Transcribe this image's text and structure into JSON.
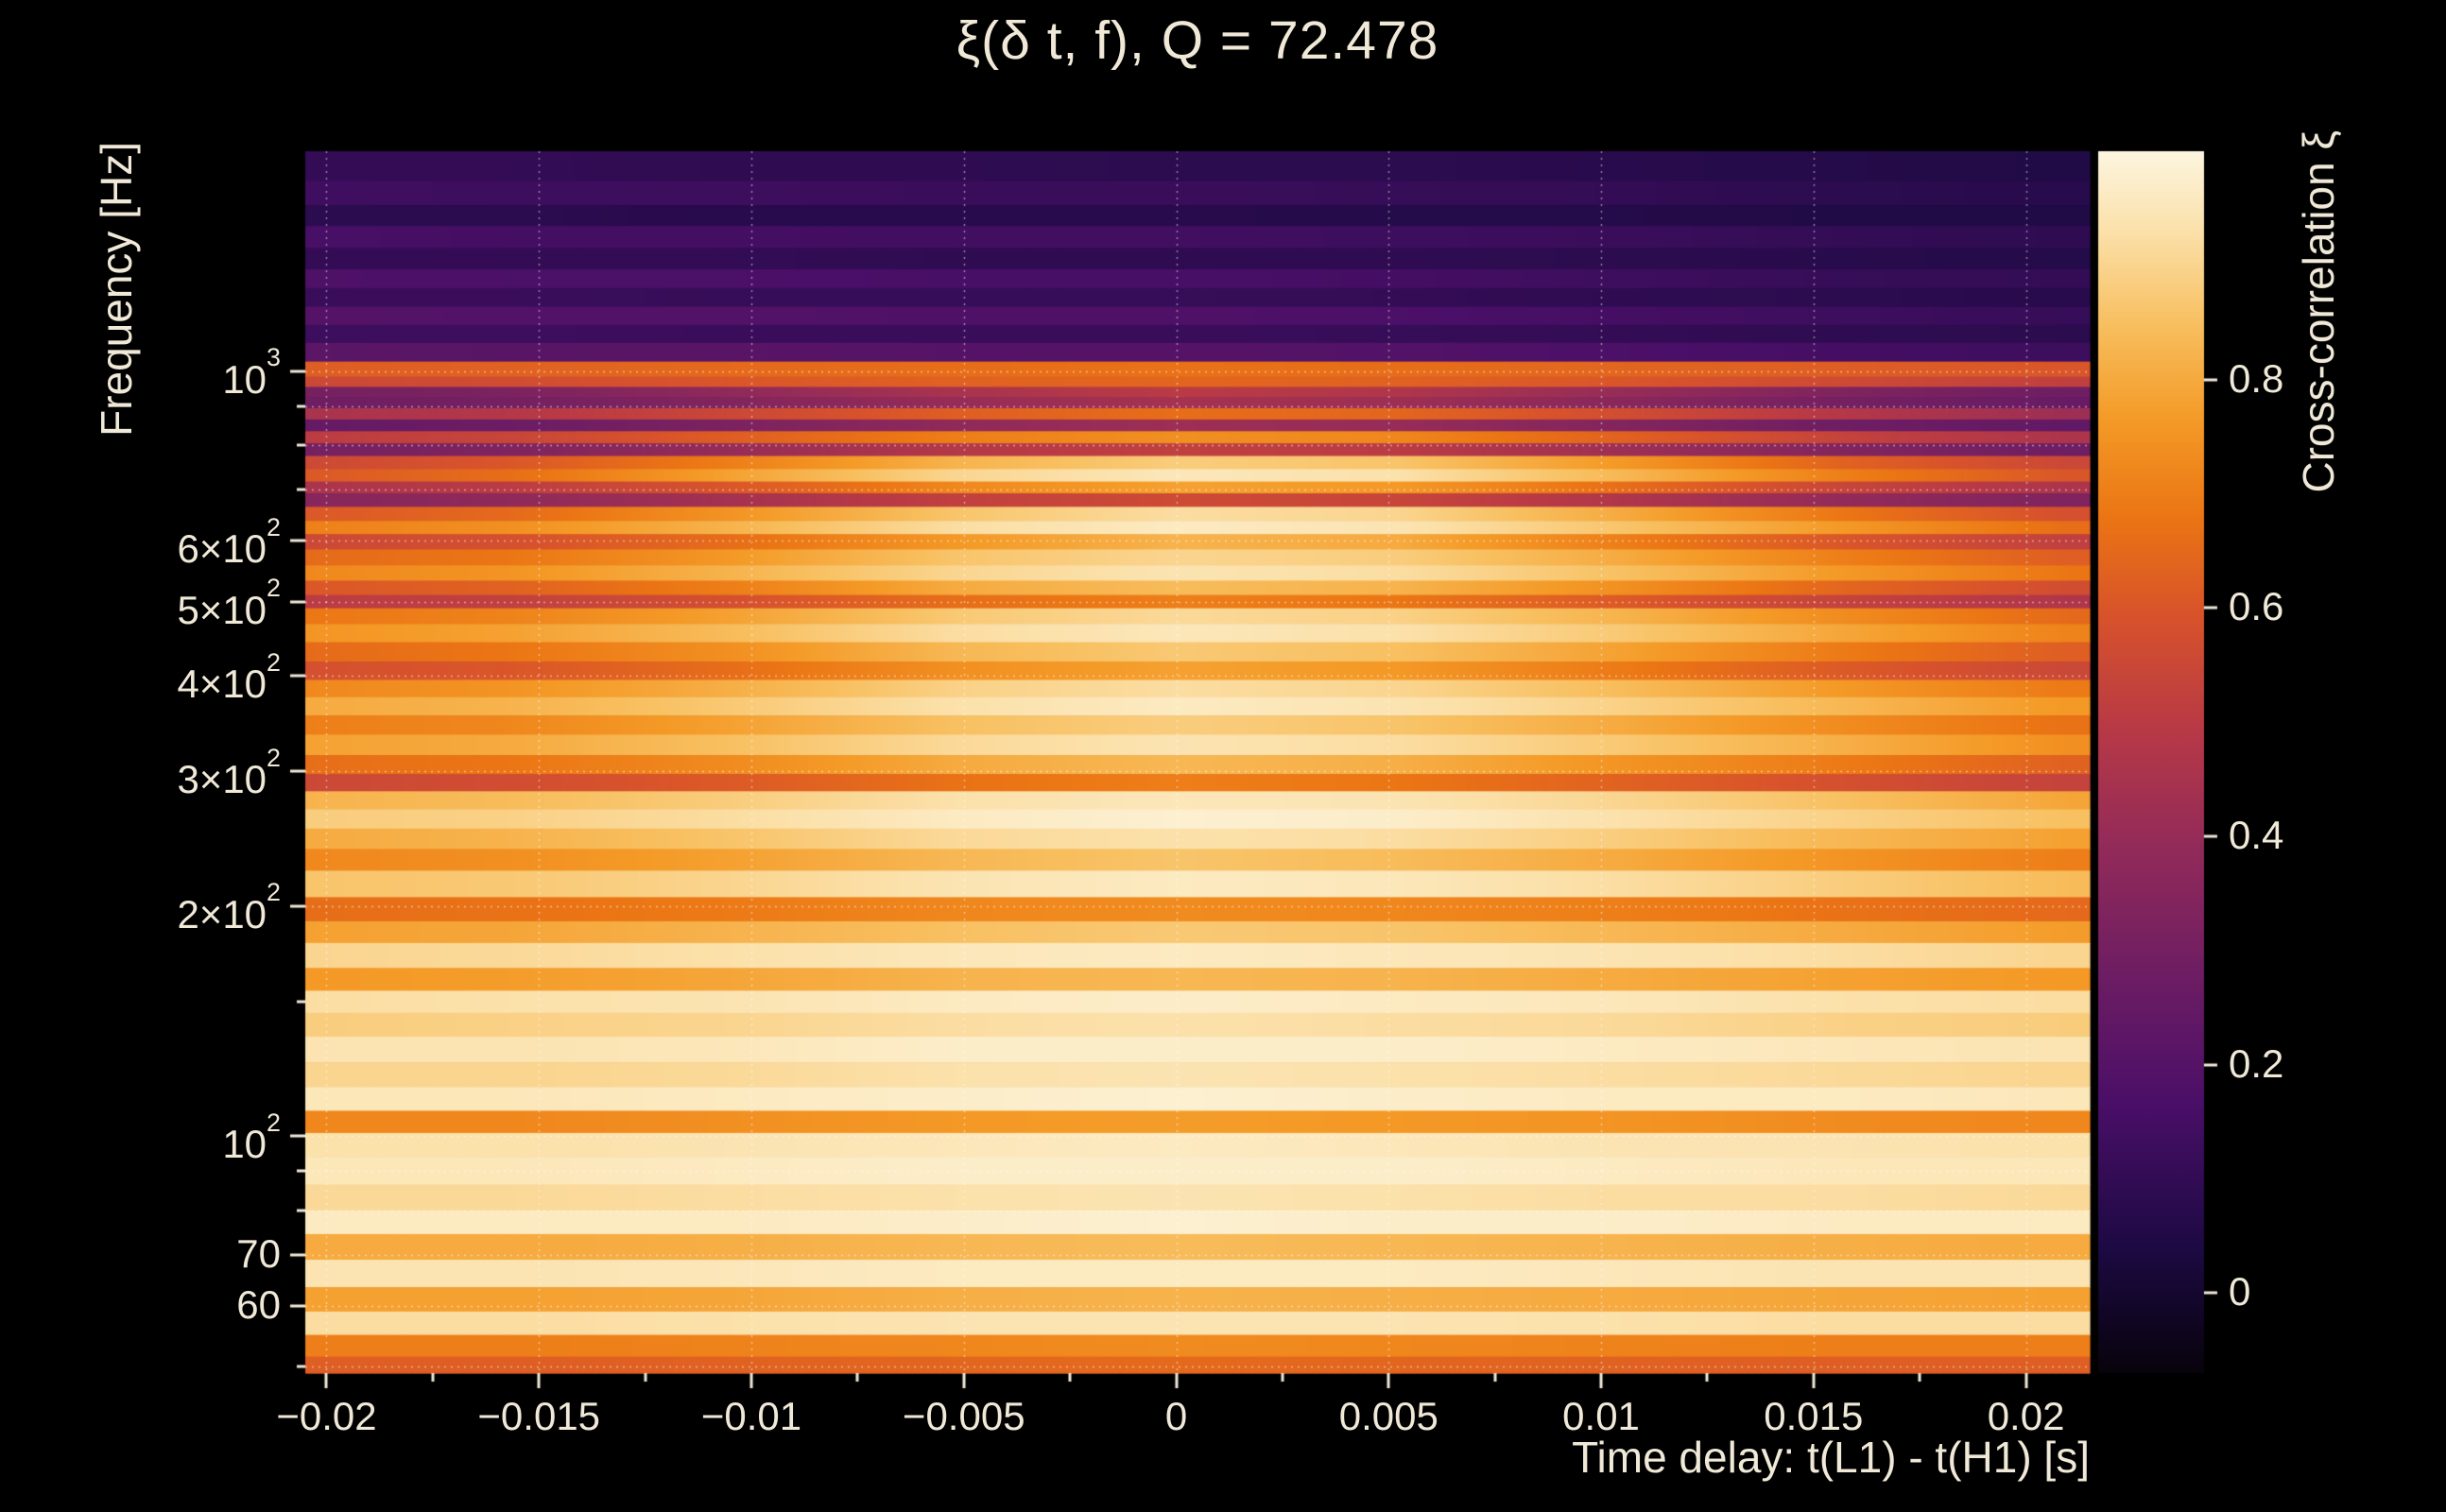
{
  "title": "ξ(δ t, f), Q = 72.478",
  "colors": {
    "background": "#000000",
    "text": "#f0e9d8",
    "grid": "#ffffff",
    "tick": "#f0e9d8"
  },
  "chart_data": {
    "type": "heatmap",
    "title": "ξ(δ t, f), Q = 72.478",
    "xlabel": "Time delay: t(L1) - t(H1) [s]",
    "ylabel": "Frequency [Hz]",
    "colorbar_label": "Cross-correlation ξ",
    "x_range": [
      -0.0205,
      0.0215
    ],
    "y_range": [
      49,
      1940
    ],
    "y_scale": "log",
    "value_range": [
      -0.07,
      1.0
    ],
    "x_ticks": [
      -0.02,
      -0.015,
      -0.01,
      -0.005,
      0,
      0.005,
      0.01,
      0.015,
      0.02
    ],
    "x_tick_labels": [
      "−0.02",
      "−0.015",
      "−0.01",
      "−0.005",
      "0",
      "0.005",
      "0.01",
      "0.015",
      "0.02"
    ],
    "x_minor_ticks": [
      -0.0175,
      -0.0125,
      -0.0075,
      -0.0025,
      0.0025,
      0.0075,
      0.0125,
      0.0175
    ],
    "y_ticks": [
      {
        "v": 1000,
        "base": "10",
        "exp": "3"
      },
      {
        "v": 600,
        "base": "6×10",
        "exp": "2"
      },
      {
        "v": 500,
        "base": "5×10",
        "exp": "2"
      },
      {
        "v": 400,
        "base": "4×10",
        "exp": "2"
      },
      {
        "v": 300,
        "base": "3×10",
        "exp": "2"
      },
      {
        "v": 200,
        "base": "2×10",
        "exp": "2"
      },
      {
        "v": 100,
        "base": "10",
        "exp": "2"
      },
      {
        "v": 70,
        "base": "70",
        "exp": ""
      },
      {
        "v": 60,
        "base": "60",
        "exp": ""
      }
    ],
    "y_minor_ticks": [
      900,
      800,
      700,
      150,
      90,
      80,
      50
    ],
    "grid_y_values": [
      1000,
      900,
      800,
      700,
      600,
      500,
      400,
      300,
      200,
      100,
      90,
      80,
      70,
      60,
      50
    ],
    "colorbar_ticks": [
      {
        "v": 0,
        "label": "0"
      },
      {
        "v": 0.2,
        "label": "0.2"
      },
      {
        "v": 0.4,
        "label": "0.4"
      },
      {
        "v": 0.6,
        "label": "0.6"
      },
      {
        "v": 0.8,
        "label": "0.8"
      }
    ],
    "colormap": [
      [
        0.0,
        "#08030c"
      ],
      [
        0.1,
        "#1c0a42"
      ],
      [
        0.22,
        "#4a0f68"
      ],
      [
        0.33,
        "#6f1e63"
      ],
      [
        0.44,
        "#962c58"
      ],
      [
        0.53,
        "#b93a45"
      ],
      [
        0.62,
        "#d8532b"
      ],
      [
        0.7,
        "#eb7514"
      ],
      [
        0.78,
        "#f49a27"
      ],
      [
        0.86,
        "#f8c061"
      ],
      [
        0.93,
        "#fbdfa6"
      ],
      [
        1.0,
        "#fdf6e0"
      ]
    ],
    "time_samples": [
      -0.021,
      -0.01575,
      -0.0105,
      -0.00525,
      0,
      0.00525,
      0.0105,
      0.01575,
      0.021
    ],
    "rows": [
      {
        "f": 1850,
        "values": [
          0.1,
          0.1,
          0.09,
          0.09,
          0.08,
          0.08,
          0.07,
          0.06,
          0.05
        ]
      },
      {
        "f": 1700,
        "values": [
          0.14,
          0.13,
          0.13,
          0.12,
          0.12,
          0.11,
          0.1,
          0.08,
          0.07
        ]
      },
      {
        "f": 1600,
        "values": [
          0.08,
          0.08,
          0.07,
          0.07,
          0.07,
          0.06,
          0.06,
          0.05,
          0.05
        ]
      },
      {
        "f": 1500,
        "values": [
          0.16,
          0.15,
          0.15,
          0.14,
          0.14,
          0.13,
          0.12,
          0.1,
          0.09
        ]
      },
      {
        "f": 1400,
        "values": [
          0.1,
          0.1,
          0.1,
          0.09,
          0.09,
          0.09,
          0.08,
          0.07,
          0.06
        ]
      },
      {
        "f": 1320,
        "values": [
          0.18,
          0.17,
          0.17,
          0.16,
          0.16,
          0.15,
          0.13,
          0.11,
          0.1
        ]
      },
      {
        "f": 1250,
        "values": [
          0.12,
          0.12,
          0.11,
          0.11,
          0.11,
          0.1,
          0.09,
          0.08,
          0.07
        ]
      },
      {
        "f": 1180,
        "values": [
          0.2,
          0.19,
          0.19,
          0.18,
          0.18,
          0.17,
          0.15,
          0.13,
          0.11
        ]
      },
      {
        "f": 1120,
        "values": [
          0.13,
          0.13,
          0.12,
          0.12,
          0.12,
          0.11,
          0.1,
          0.09,
          0.08
        ]
      },
      {
        "f": 1060,
        "values": [
          0.22,
          0.21,
          0.21,
          0.2,
          0.2,
          0.19,
          0.17,
          0.15,
          0.13
        ]
      },
      {
        "f": 1000,
        "values": [
          0.62,
          0.63,
          0.65,
          0.66,
          0.67,
          0.66,
          0.64,
          0.62,
          0.6
        ]
      },
      {
        "f": 968,
        "values": [
          0.55,
          0.57,
          0.6,
          0.63,
          0.64,
          0.63,
          0.6,
          0.56,
          0.52
        ]
      },
      {
        "f": 940,
        "values": [
          0.3,
          0.32,
          0.38,
          0.45,
          0.5,
          0.47,
          0.4,
          0.33,
          0.28
        ]
      },
      {
        "f": 910,
        "values": [
          0.28,
          0.3,
          0.34,
          0.4,
          0.44,
          0.42,
          0.36,
          0.3,
          0.26
        ]
      },
      {
        "f": 880,
        "values": [
          0.45,
          0.48,
          0.55,
          0.62,
          0.66,
          0.64,
          0.57,
          0.48,
          0.42
        ]
      },
      {
        "f": 850,
        "values": [
          0.25,
          0.27,
          0.32,
          0.38,
          0.42,
          0.4,
          0.34,
          0.28,
          0.24
        ]
      },
      {
        "f": 820,
        "values": [
          0.5,
          0.54,
          0.62,
          0.7,
          0.74,
          0.72,
          0.63,
          0.53,
          0.46
        ]
      },
      {
        "f": 790,
        "values": [
          0.3,
          0.33,
          0.4,
          0.48,
          0.52,
          0.5,
          0.42,
          0.34,
          0.28
        ]
      },
      {
        "f": 760,
        "values": [
          0.55,
          0.6,
          0.7,
          0.82,
          0.88,
          0.86,
          0.76,
          0.63,
          0.55
        ]
      },
      {
        "f": 730,
        "values": [
          0.6,
          0.66,
          0.78,
          0.9,
          0.95,
          0.93,
          0.83,
          0.7,
          0.6
        ]
      },
      {
        "f": 705,
        "values": [
          0.45,
          0.5,
          0.6,
          0.72,
          0.78,
          0.76,
          0.66,
          0.54,
          0.46
        ]
      },
      {
        "f": 680,
        "values": [
          0.35,
          0.38,
          0.44,
          0.52,
          0.56,
          0.54,
          0.47,
          0.39,
          0.33
        ]
      },
      {
        "f": 650,
        "values": [
          0.6,
          0.65,
          0.75,
          0.86,
          0.92,
          0.9,
          0.8,
          0.68,
          0.58
        ]
      },
      {
        "f": 625,
        "values": [
          0.7,
          0.74,
          0.82,
          0.92,
          0.96,
          0.94,
          0.86,
          0.76,
          0.66
        ]
      },
      {
        "f": 600,
        "values": [
          0.55,
          0.58,
          0.66,
          0.76,
          0.82,
          0.8,
          0.7,
          0.6,
          0.52
        ]
      },
      {
        "f": 570,
        "values": [
          0.65,
          0.68,
          0.76,
          0.86,
          0.9,
          0.88,
          0.8,
          0.7,
          0.62
        ]
      },
      {
        "f": 545,
        "values": [
          0.72,
          0.75,
          0.82,
          0.9,
          0.94,
          0.92,
          0.85,
          0.76,
          0.68
        ]
      },
      {
        "f": 520,
        "values": [
          0.6,
          0.63,
          0.7,
          0.8,
          0.84,
          0.82,
          0.74,
          0.64,
          0.57
        ]
      },
      {
        "f": 500,
        "values": [
          0.5,
          0.52,
          0.58,
          0.66,
          0.7,
          0.68,
          0.61,
          0.53,
          0.47
        ]
      },
      {
        "f": 480,
        "values": [
          0.68,
          0.71,
          0.78,
          0.87,
          0.91,
          0.89,
          0.82,
          0.73,
          0.65
        ]
      },
      {
        "f": 455,
        "values": [
          0.75,
          0.78,
          0.84,
          0.92,
          0.95,
          0.93,
          0.87,
          0.79,
          0.71
        ]
      },
      {
        "f": 430,
        "values": [
          0.65,
          0.68,
          0.74,
          0.83,
          0.87,
          0.85,
          0.78,
          0.69,
          0.62
        ]
      },
      {
        "f": 405,
        "values": [
          0.58,
          0.6,
          0.66,
          0.74,
          0.78,
          0.76,
          0.69,
          0.61,
          0.55
        ]
      },
      {
        "f": 385,
        "values": [
          0.72,
          0.75,
          0.81,
          0.89,
          0.92,
          0.9,
          0.84,
          0.76,
          0.69
        ]
      },
      {
        "f": 365,
        "values": [
          0.8,
          0.82,
          0.87,
          0.93,
          0.96,
          0.94,
          0.89,
          0.83,
          0.76
        ]
      },
      {
        "f": 345,
        "values": [
          0.7,
          0.72,
          0.78,
          0.85,
          0.88,
          0.86,
          0.8,
          0.73,
          0.67
        ]
      },
      {
        "f": 325,
        "values": [
          0.78,
          0.8,
          0.85,
          0.91,
          0.94,
          0.92,
          0.87,
          0.81,
          0.74
        ]
      },
      {
        "f": 305,
        "values": [
          0.66,
          0.68,
          0.73,
          0.8,
          0.83,
          0.81,
          0.75,
          0.69,
          0.63
        ]
      },
      {
        "f": 290,
        "values": [
          0.55,
          0.57,
          0.61,
          0.67,
          0.7,
          0.68,
          0.63,
          0.58,
          0.53
        ]
      },
      {
        "f": 275,
        "values": [
          0.82,
          0.84,
          0.88,
          0.93,
          0.95,
          0.94,
          0.9,
          0.85,
          0.79
        ]
      },
      {
        "f": 260,
        "values": [
          0.88,
          0.89,
          0.92,
          0.96,
          0.98,
          0.97,
          0.93,
          0.89,
          0.85
        ]
      },
      {
        "f": 245,
        "values": [
          0.8,
          0.82,
          0.86,
          0.91,
          0.93,
          0.92,
          0.88,
          0.83,
          0.78
        ]
      },
      {
        "f": 230,
        "values": [
          0.72,
          0.74,
          0.78,
          0.83,
          0.86,
          0.84,
          0.8,
          0.75,
          0.7
        ]
      },
      {
        "f": 215,
        "values": [
          0.86,
          0.87,
          0.9,
          0.94,
          0.96,
          0.95,
          0.92,
          0.88,
          0.84
        ]
      },
      {
        "f": 196,
        "values": [
          0.66,
          0.67,
          0.69,
          0.72,
          0.73,
          0.72,
          0.7,
          0.67,
          0.65
        ]
      },
      {
        "f": 186,
        "values": [
          0.78,
          0.79,
          0.82,
          0.85,
          0.87,
          0.86,
          0.83,
          0.8,
          0.77
        ]
      },
      {
        "f": 172,
        "values": [
          0.9,
          0.91,
          0.93,
          0.95,
          0.96,
          0.95,
          0.94,
          0.92,
          0.9
        ]
      },
      {
        "f": 160,
        "values": [
          0.76,
          0.77,
          0.79,
          0.82,
          0.83,
          0.82,
          0.8,
          0.78,
          0.76
        ]
      },
      {
        "f": 150,
        "values": [
          0.92,
          0.93,
          0.94,
          0.96,
          0.97,
          0.96,
          0.95,
          0.93,
          0.92
        ]
      },
      {
        "f": 140,
        "values": [
          0.88,
          0.89,
          0.9,
          0.92,
          0.93,
          0.92,
          0.91,
          0.89,
          0.88
        ]
      },
      {
        "f": 130,
        "values": [
          0.94,
          0.94,
          0.95,
          0.97,
          0.97,
          0.97,
          0.96,
          0.95,
          0.94
        ]
      },
      {
        "f": 120,
        "values": [
          0.9,
          0.9,
          0.91,
          0.93,
          0.94,
          0.93,
          0.92,
          0.91,
          0.9
        ]
      },
      {
        "f": 112,
        "values": [
          0.95,
          0.95,
          0.96,
          0.97,
          0.98,
          0.97,
          0.96,
          0.96,
          0.95
        ]
      },
      {
        "f": 104,
        "values": [
          0.72,
          0.72,
          0.74,
          0.76,
          0.77,
          0.76,
          0.75,
          0.73,
          0.72
        ]
      },
      {
        "f": 98,
        "values": [
          0.93,
          0.93,
          0.94,
          0.95,
          0.96,
          0.95,
          0.94,
          0.94,
          0.93
        ]
      },
      {
        "f": 90,
        "values": [
          0.95,
          0.95,
          0.96,
          0.97,
          0.97,
          0.97,
          0.96,
          0.95,
          0.95
        ]
      },
      {
        "f": 83,
        "values": [
          0.91,
          0.91,
          0.92,
          0.93,
          0.94,
          0.93,
          0.92,
          0.92,
          0.91
        ]
      },
      {
        "f": 77,
        "values": [
          0.96,
          0.96,
          0.96,
          0.97,
          0.98,
          0.97,
          0.97,
          0.96,
          0.96
        ]
      },
      {
        "f": 72,
        "values": [
          0.8,
          0.8,
          0.81,
          0.83,
          0.84,
          0.83,
          0.82,
          0.81,
          0.8
        ]
      },
      {
        "f": 66,
        "values": [
          0.94,
          0.94,
          0.95,
          0.96,
          0.96,
          0.96,
          0.95,
          0.94,
          0.94
        ]
      },
      {
        "f": 61,
        "values": [
          0.78,
          0.78,
          0.79,
          0.81,
          0.82,
          0.81,
          0.8,
          0.79,
          0.78
        ]
      },
      {
        "f": 57,
        "values": [
          0.92,
          0.92,
          0.93,
          0.94,
          0.94,
          0.94,
          0.93,
          0.92,
          0.92
        ]
      },
      {
        "f": 53,
        "values": [
          0.7,
          0.7,
          0.71,
          0.72,
          0.73,
          0.72,
          0.71,
          0.7,
          0.7
        ]
      },
      {
        "f": 50,
        "values": [
          0.62,
          0.62,
          0.63,
          0.64,
          0.65,
          0.64,
          0.63,
          0.62,
          0.62
        ]
      }
    ]
  }
}
